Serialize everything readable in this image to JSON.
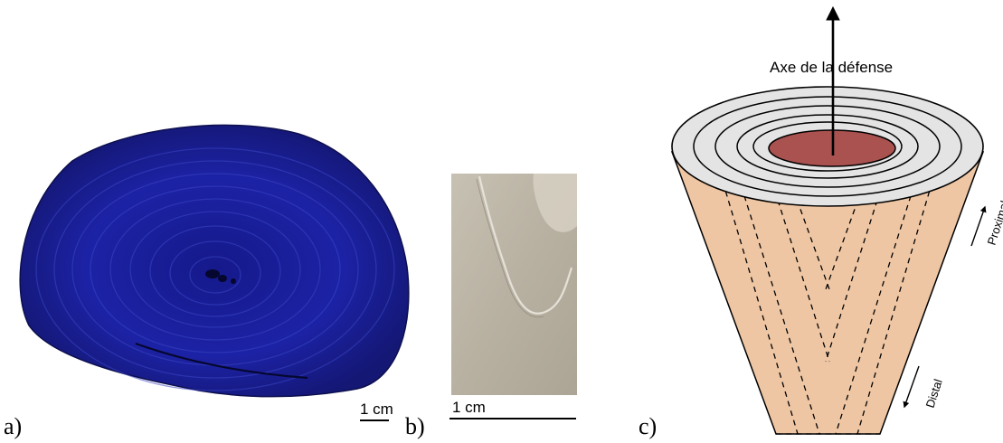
{
  "panels": {
    "a": {
      "letter": "a)",
      "scale_label": "1 cm"
    },
    "b": {
      "letter": "b)",
      "scale_label": "1 cm"
    },
    "c": {
      "letter": "c)",
      "axis_label": "Axe de la défense",
      "proximal_label": "Proximal",
      "distal_label": "Distal"
    }
  },
  "colors": {
    "tusk_section": "#1b1f8e",
    "section_ring": "#3a46c4",
    "photo_background": "#b9b2a4",
    "cone_fill": "#eec6a4",
    "top_face": "#e2e2e2",
    "pulp_cavity": "#a9524f",
    "stroke": "#000000"
  }
}
